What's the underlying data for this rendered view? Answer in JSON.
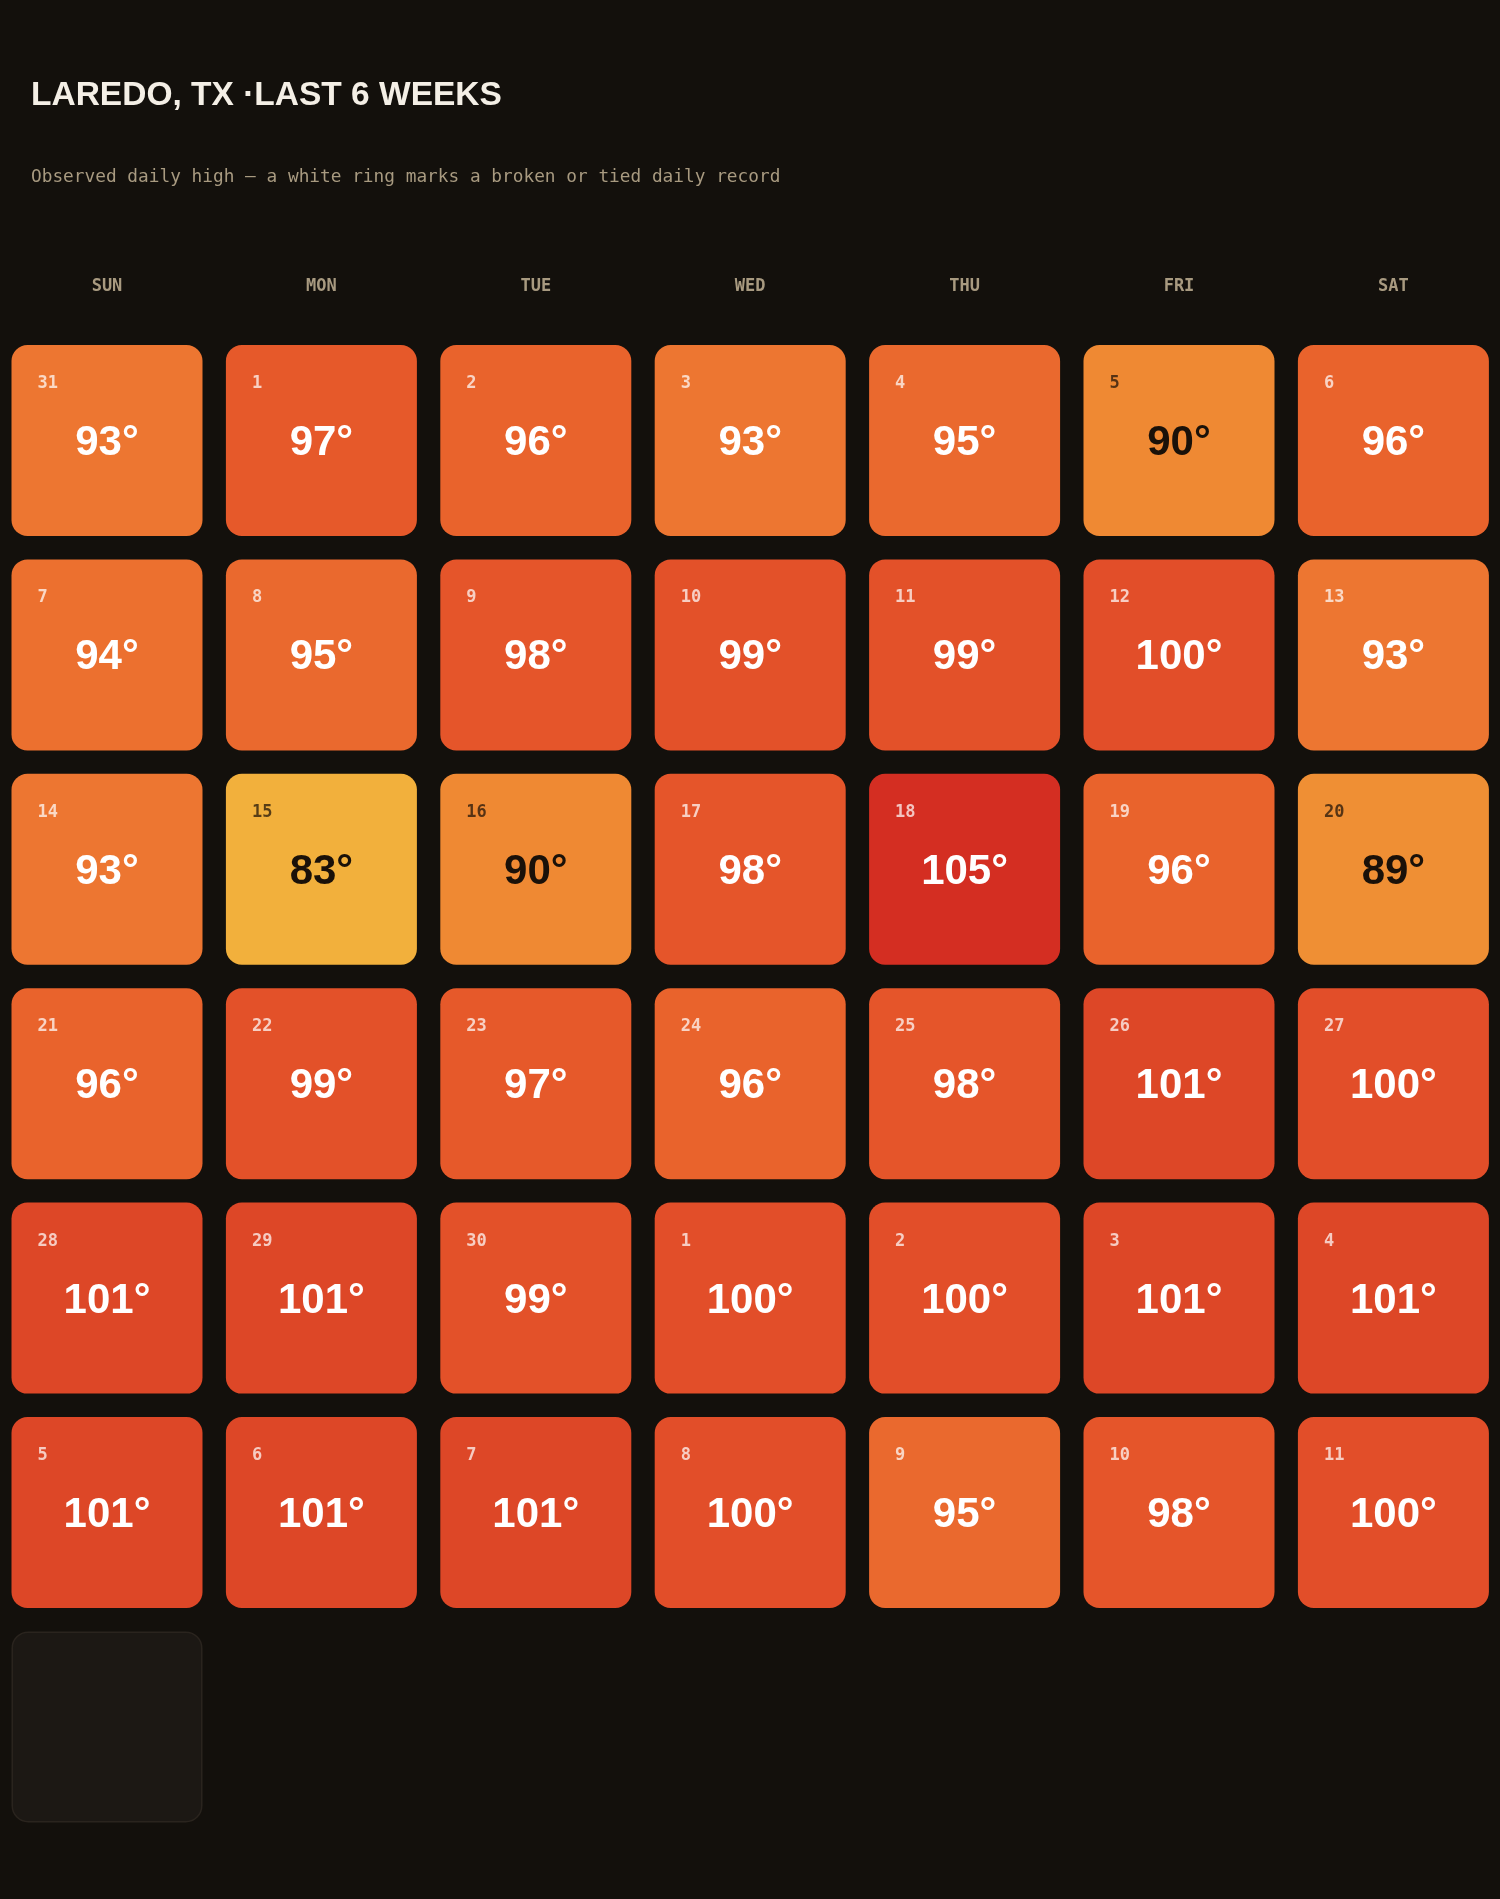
{
  "chart_data": {
    "type": "heatmap",
    "title": "LAREDO, TX ·LAST 6 WEEKS",
    "subtitle": "Observed daily high — a white ring marks a broken or tied daily record",
    "categories": [
      "SUN",
      "MON",
      "TUE",
      "WED",
      "THU",
      "FRI",
      "SAT"
    ],
    "y_categories": [
      null,
      null,
      null,
      null,
      null,
      null
    ],
    "cells": [
      [
        93,
        97,
        96,
        93,
        95,
        90,
        96
      ],
      [
        94,
        95,
        98,
        99,
        99,
        100,
        93
      ],
      [
        93,
        83,
        90,
        98,
        105,
        96,
        89
      ],
      [
        96,
        99,
        97,
        96,
        98,
        101,
        100
      ],
      [
        101,
        101,
        99,
        100,
        100,
        101,
        101
      ],
      [
        101,
        101,
        101,
        100,
        95,
        98,
        100
      ]
    ],
    "cell_labels": [
      [
        "93°",
        "97°",
        "96°",
        "93°",
        "95°",
        "90°",
        "96°"
      ],
      [
        "94°",
        "95°",
        "98°",
        "99°",
        "99°",
        "100°",
        "93°"
      ],
      [
        "93°",
        "83°",
        "90°",
        "98°",
        "105°",
        "96°",
        "89°"
      ],
      [
        "96°",
        "99°",
        "97°",
        "96°",
        "98°",
        "101°",
        "100°"
      ],
      [
        "101°",
        "101°",
        "99°",
        "100°",
        "100°",
        "101°",
        "101°"
      ],
      [
        "101°",
        "101°",
        "101°",
        "100°",
        "95°",
        "98°",
        "100°"
      ]
    ],
    "annotations": [
      "31",
      "1",
      "2",
      "3",
      "4",
      "5",
      "6",
      "7",
      "8",
      "9",
      "10",
      "11",
      "12",
      "13",
      "14",
      "15",
      "16",
      "17",
      "18",
      "19",
      "20",
      "21",
      "22",
      "23",
      "24",
      "25",
      "26",
      "27",
      "28",
      "29",
      "30",
      "1",
      "2",
      "3",
      "4",
      "5",
      "6",
      "7",
      "8",
      "9",
      "10",
      "11"
    ]
  }
}
